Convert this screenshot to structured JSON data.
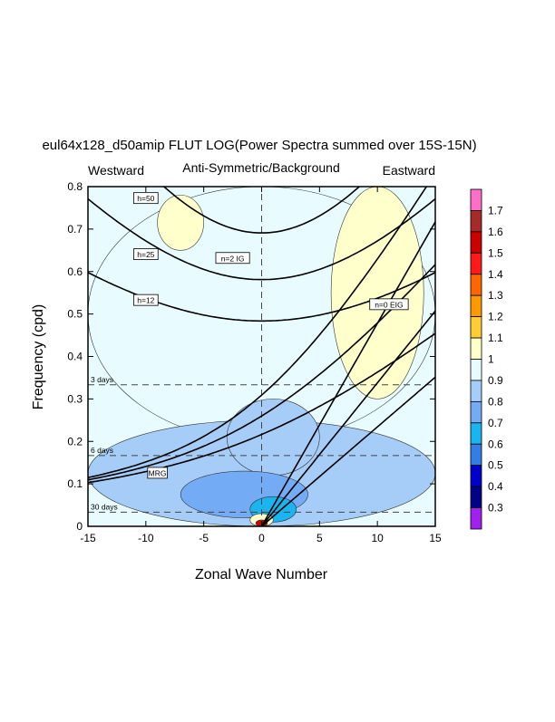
{
  "chart_data": {
    "type": "heatmap",
    "title": "eul64x128_d50amip FLUT LOG(Power Spectra summed over 15S-15N)",
    "subtitle": "Anti-Symmetric/Background",
    "left_label": "Westward",
    "right_label": "Eastward",
    "xlabel": "Zonal Wave Number",
    "ylabel": "Frequency (cpd)",
    "xlim": [
      -15,
      15
    ],
    "ylim": [
      0,
      0.8
    ],
    "x_ticks": [
      -15,
      -10,
      -5,
      0,
      5,
      10,
      15
    ],
    "x_tick_labels": [
      "-15",
      "-10",
      "-5",
      "0",
      "5",
      "10",
      "15"
    ],
    "y_ticks": [
      0,
      0.1,
      0.2,
      0.3,
      0.4,
      0.5,
      0.6,
      0.7,
      0.8
    ],
    "y_tick_labels": [
      "0",
      "0.1",
      "0.2",
      "0.3",
      "0.4",
      "0.5",
      "0.6",
      "0.7",
      "0.8"
    ],
    "colorbar": {
      "labels": [
        "1.7",
        "1.6",
        "1.5",
        "1.4",
        "1.3",
        "1.2",
        "1.1",
        "1",
        "0.9",
        "0.8",
        "0.7",
        "0.6",
        "0.5",
        "0.4",
        "0.3"
      ],
      "colors": [
        "#ff6ec7",
        "#a52a2a",
        "#cc0000",
        "#ff1a1a",
        "#ff6600",
        "#ff9900",
        "#ffcc33",
        "#ffffcc",
        "#e8fcff",
        "#a6cdf8",
        "#74abf5",
        "#1ab4ef",
        "#2f7fe6",
        "#0000cd",
        "#000088",
        "#a020f0"
      ]
    },
    "period_lines": [
      {
        "label": "3 days",
        "frequency": 0.3333
      },
      {
        "label": "6 days",
        "frequency": 0.1667
      },
      {
        "label": "30 days",
        "frequency": 0.0333
      }
    ],
    "dispersion_labels": [
      {
        "label": "h=50",
        "k": -10,
        "f": 0.773
      },
      {
        "label": "h=25",
        "k": -10,
        "f": 0.641
      },
      {
        "label": "h=12",
        "k": -10,
        "f": 0.533
      },
      {
        "label": "n=2 IG",
        "k": -2.5,
        "f": 0.632
      },
      {
        "label": "n=0 EIG",
        "k": 11,
        "f": 0.523
      },
      {
        "label": "MRG",
        "k": -9,
        "f": 0.126
      }
    ],
    "field_regions": [
      {
        "value": 1.0,
        "k": [
          -15,
          15
        ],
        "f": [
          0.2,
          0.8
        ]
      },
      {
        "value": 0.9,
        "k": [
          -15,
          15
        ],
        "f": [
          0.0,
          0.25
        ]
      },
      {
        "value": 0.9,
        "k": [
          -3,
          5
        ],
        "f": [
          0.12,
          0.3
        ]
      },
      {
        "value": 0.8,
        "k": [
          -7,
          4
        ],
        "f": [
          0.02,
          0.13
        ]
      },
      {
        "value": 0.7,
        "k": [
          -1,
          3
        ],
        "f": [
          0.01,
          0.07
        ]
      },
      {
        "value": 1.1,
        "k": [
          6,
          14
        ],
        "f": [
          0.3,
          0.8
        ]
      },
      {
        "value": 1.1,
        "k": [
          -9,
          -5
        ],
        "f": [
          0.65,
          0.78
        ]
      },
      {
        "value": 1.1,
        "k": [
          -1,
          1
        ],
        "f": [
          0.0,
          0.03
        ]
      },
      {
        "value": 1.6,
        "k": [
          -0.5,
          0.5
        ],
        "f": [
          0.0,
          0.015
        ]
      }
    ]
  }
}
